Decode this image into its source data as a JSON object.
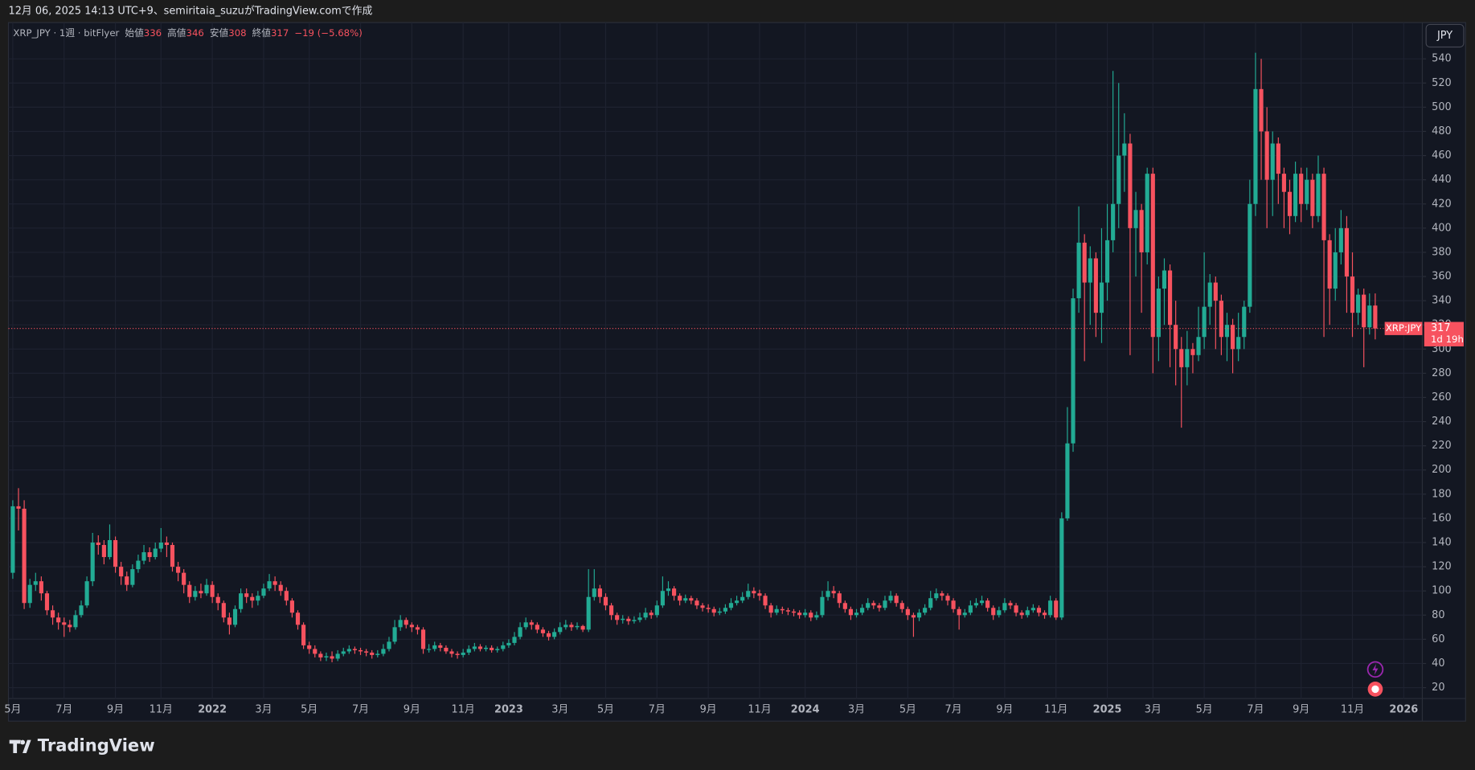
{
  "header": {
    "caption": "12月 06, 2025 14:13 UTC+9、semiritaia_suzuがTradingView.comで作成",
    "brand": "TradingView"
  },
  "chart_data": {
    "type": "candlestick",
    "symbol": "XRP_JPY · 1週 · bitFlyer",
    "ohlc_labels": [
      "始値",
      "高値",
      "安値",
      "終値"
    ],
    "change": "−19 (−5.68%)",
    "currency": "JPY",
    "price_tag": "XRP:JPY",
    "countdown": "1d 19h",
    "categories": [
      "5月",
      null,
      null,
      null,
      null,
      null,
      null,
      null,
      null,
      "7月",
      null,
      null,
      null,
      null,
      null,
      null,
      null,
      null,
      "9月",
      null,
      null,
      null,
      null,
      null,
      null,
      null,
      "11月",
      null,
      null,
      null,
      null,
      null,
      null,
      null,
      null,
      "2022",
      null,
      null,
      null,
      null,
      null,
      null,
      null,
      null,
      "3月",
      null,
      null,
      null,
      null,
      null,
      null,
      null,
      "5月",
      null,
      null,
      null,
      null,
      null,
      null,
      null,
      null,
      "7月",
      null,
      null,
      null,
      null,
      null,
      null,
      null,
      null,
      "9月",
      null,
      null,
      null,
      null,
      null,
      null,
      null,
      null,
      "11月",
      null,
      null,
      null,
      null,
      null,
      null,
      null,
      "2023",
      null,
      null,
      null,
      null,
      null,
      null,
      null,
      null,
      "3月",
      null,
      null,
      null,
      null,
      null,
      null,
      null,
      "5月",
      null,
      null,
      null,
      null,
      null,
      null,
      null,
      null,
      "7月",
      null,
      null,
      null,
      null,
      null,
      null,
      null,
      null,
      "9月",
      null,
      null,
      null,
      null,
      null,
      null,
      null,
      null,
      "11月",
      null,
      null,
      null,
      null,
      null,
      null,
      null,
      "2024",
      null,
      null,
      null,
      null,
      null,
      null,
      null,
      null,
      "3月",
      null,
      null,
      null,
      null,
      null,
      null,
      null,
      null,
      "5月",
      null,
      null,
      null,
      null,
      null,
      null,
      null,
      "7月",
      null,
      null,
      null,
      null,
      null,
      null,
      null,
      null,
      "9月",
      null,
      null,
      null,
      null,
      null,
      null,
      null,
      null,
      "11月",
      null,
      null,
      null,
      null,
      null,
      null,
      null,
      null,
      "2025",
      null,
      null,
      null,
      null,
      null,
      null,
      null,
      "3月",
      null,
      null,
      null,
      null,
      null,
      null,
      null,
      null,
      "5月",
      null,
      null,
      null,
      null,
      null,
      null,
      null,
      null,
      "7月",
      null,
      null,
      null,
      null,
      null,
      null,
      null,
      "9月",
      null,
      null,
      null,
      null,
      null,
      null,
      null,
      null,
      "11月",
      null,
      null,
      null,
      null,
      null,
      null,
      null,
      null,
      "2026",
      null,
      null
    ],
    "open": [
      115,
      170,
      168,
      90,
      105,
      108,
      98,
      84,
      78,
      74,
      72,
      70,
      80,
      88,
      108,
      140,
      138,
      128,
      142,
      120,
      112,
      105,
      118,
      125,
      132,
      128,
      135,
      140,
      138,
      120,
      115,
      105,
      95,
      100,
      98,
      105,
      95,
      90,
      78,
      72,
      85,
      98,
      95,
      92,
      96,
      102,
      108,
      105,
      100,
      92,
      82,
      72,
      55,
      52,
      48,
      45,
      46,
      44,
      48,
      50,
      52,
      51,
      50,
      49,
      47,
      48,
      52,
      58,
      70,
      76,
      72,
      70,
      68,
      52,
      52,
      55,
      53,
      50,
      48,
      47,
      49,
      52,
      54,
      52,
      53,
      51,
      52,
      55,
      57,
      62,
      70,
      74,
      72,
      68,
      65,
      62,
      66,
      70,
      72,
      70,
      71,
      68,
      95,
      102,
      95,
      88,
      80,
      76,
      77,
      75,
      76,
      78,
      82,
      80,
      88,
      100,
      102,
      96,
      92,
      94,
      92,
      88,
      86,
      85,
      82,
      83,
      86,
      90,
      92,
      95,
      100,
      98,
      96,
      88,
      82,
      85,
      84,
      83,
      82,
      80,
      82,
      78,
      80,
      95,
      100,
      98,
      90,
      85,
      80,
      82,
      86,
      90,
      88,
      86,
      92,
      96,
      90,
      85,
      80,
      78,
      82,
      86,
      94,
      98,
      96,
      92,
      85,
      80,
      82,
      88,
      90,
      92,
      86,
      80,
      84,
      90,
      88,
      82,
      80,
      84,
      86,
      82,
      80,
      92,
      78,
      160,
      222,
      342,
      388,
      355,
      375,
      330,
      355,
      390,
      420,
      460,
      470,
      400,
      415,
      380,
      445,
      310,
      350,
      365,
      320,
      300,
      285,
      300,
      295,
      310,
      335,
      355,
      340,
      310,
      320,
      300,
      310,
      335,
      420,
      515,
      480,
      440,
      470,
      445,
      430,
      410,
      445,
      420,
      440,
      410,
      445,
      390,
      350,
      380,
      400,
      360,
      330,
      345,
      318,
      336,
      null,
      null,
      null,
      null,
      null,
      null,
      null
    ],
    "high": [
      175,
      185,
      175,
      110,
      115,
      112,
      100,
      88,
      82,
      78,
      76,
      84,
      92,
      112,
      148,
      146,
      142,
      155,
      145,
      124,
      116,
      122,
      130,
      138,
      136,
      140,
      152,
      145,
      140,
      124,
      118,
      108,
      104,
      106,
      110,
      108,
      98,
      92,
      82,
      88,
      102,
      102,
      98,
      100,
      106,
      114,
      112,
      108,
      103,
      94,
      84,
      74,
      58,
      55,
      50,
      49,
      50,
      51,
      53,
      55,
      54,
      53,
      52,
      51,
      51,
      56,
      62,
      76,
      80,
      78,
      74,
      72,
      70,
      56,
      58,
      57,
      55,
      52,
      50,
      52,
      55,
      57,
      56,
      55,
      55,
      54,
      58,
      60,
      66,
      74,
      78,
      76,
      74,
      70,
      67,
      69,
      74,
      76,
      74,
      74,
      72,
      118,
      118,
      105,
      98,
      90,
      82,
      80,
      79,
      79,
      82,
      86,
      84,
      92,
      112,
      108,
      104,
      98,
      97,
      96,
      94,
      90,
      89,
      87,
      86,
      89,
      94,
      96,
      99,
      106,
      103,
      101,
      98,
      90,
      88,
      87,
      86,
      85,
      84,
      85,
      84,
      83,
      100,
      108,
      104,
      100,
      92,
      87,
      85,
      89,
      94,
      92,
      90,
      96,
      100,
      98,
      92,
      87,
      82,
      85,
      89,
      100,
      102,
      100,
      98,
      94,
      87,
      85,
      92,
      94,
      96,
      94,
      88,
      87,
      94,
      92,
      90,
      84,
      87,
      89,
      88,
      84,
      96,
      94,
      165,
      252,
      350,
      418,
      395,
      385,
      380,
      400,
      420,
      530,
      520,
      495,
      478,
      430,
      420,
      450,
      450,
      360,
      375,
      370,
      340,
      310,
      315,
      305,
      335,
      380,
      362,
      360,
      345,
      330,
      325,
      330,
      340,
      440,
      545,
      540,
      500,
      480,
      475,
      450,
      440,
      455,
      450,
      450,
      445,
      460,
      450,
      395,
      400,
      415,
      410,
      380,
      350,
      350,
      346,
      346,
      null,
      null,
      null,
      null,
      null,
      null,
      null
    ],
    "low": [
      110,
      150,
      85,
      86,
      100,
      92,
      80,
      72,
      68,
      62,
      66,
      68,
      78,
      86,
      104,
      130,
      122,
      126,
      115,
      105,
      100,
      103,
      115,
      122,
      124,
      126,
      132,
      128,
      116,
      108,
      98,
      90,
      92,
      94,
      96,
      90,
      84,
      74,
      64,
      70,
      82,
      90,
      86,
      88,
      94,
      100,
      100,
      96,
      88,
      78,
      68,
      52,
      48,
      45,
      42,
      42,
      41,
      42,
      46,
      48,
      48,
      47,
      46,
      44,
      45,
      46,
      50,
      56,
      67,
      69,
      66,
      64,
      48,
      49,
      50,
      50,
      48,
      45,
      44,
      45,
      47,
      50,
      50,
      50,
      49,
      49,
      50,
      53,
      55,
      60,
      68,
      68,
      65,
      62,
      59,
      60,
      64,
      68,
      67,
      68,
      66,
      66,
      92,
      90,
      84,
      76,
      72,
      73,
      72,
      73,
      74,
      76,
      77,
      78,
      86,
      96,
      92,
      88,
      90,
      89,
      85,
      83,
      82,
      79,
      80,
      81,
      84,
      88,
      90,
      93,
      94,
      92,
      85,
      78,
      80,
      81,
      80,
      79,
      77,
      78,
      75,
      76,
      78,
      92,
      94,
      86,
      82,
      76,
      78,
      80,
      84,
      85,
      83,
      84,
      90,
      87,
      82,
      76,
      62,
      75,
      80,
      84,
      92,
      92,
      88,
      82,
      68,
      78,
      80,
      86,
      88,
      83,
      76,
      78,
      82,
      85,
      79,
      77,
      78,
      82,
      79,
      77,
      78,
      76,
      76,
      158,
      215,
      330,
      290,
      320,
      310,
      305,
      340,
      380,
      400,
      430,
      295,
      360,
      330,
      370,
      280,
      290,
      320,
      285,
      270,
      235,
      270,
      280,
      290,
      300,
      320,
      300,
      295,
      290,
      280,
      290,
      300,
      330,
      410,
      440,
      400,
      410,
      420,
      400,
      395,
      405,
      405,
      415,
      400,
      405,
      310,
      320,
      340,
      370,
      330,
      310,
      320,
      285,
      312,
      308,
      null,
      null,
      null,
      null,
      null,
      null,
      null
    ],
    "close": [
      170,
      168,
      90,
      105,
      108,
      98,
      84,
      78,
      74,
      72,
      70,
      80,
      88,
      108,
      140,
      138,
      128,
      142,
      120,
      112,
      105,
      118,
      125,
      132,
      128,
      135,
      140,
      138,
      120,
      115,
      105,
      95,
      100,
      98,
      105,
      95,
      90,
      78,
      72,
      85,
      98,
      95,
      92,
      96,
      102,
      108,
      105,
      100,
      92,
      82,
      72,
      55,
      52,
      48,
      45,
      46,
      44,
      48,
      50,
      52,
      51,
      50,
      49,
      47,
      48,
      52,
      58,
      70,
      76,
      72,
      70,
      68,
      52,
      52,
      55,
      53,
      50,
      48,
      47,
      49,
      52,
      54,
      52,
      53,
      51,
      52,
      55,
      57,
      62,
      70,
      74,
      72,
      68,
      65,
      62,
      66,
      70,
      72,
      70,
      71,
      68,
      95,
      102,
      95,
      88,
      80,
      76,
      77,
      75,
      76,
      78,
      82,
      80,
      88,
      100,
      102,
      96,
      92,
      94,
      92,
      88,
      86,
      85,
      82,
      83,
      86,
      90,
      92,
      95,
      100,
      98,
      96,
      88,
      82,
      85,
      84,
      83,
      82,
      80,
      82,
      78,
      80,
      95,
      100,
      98,
      90,
      85,
      80,
      82,
      86,
      90,
      88,
      86,
      92,
      96,
      90,
      85,
      80,
      78,
      82,
      86,
      94,
      98,
      96,
      92,
      85,
      80,
      82,
      88,
      90,
      92,
      86,
      80,
      84,
      90,
      88,
      82,
      80,
      84,
      86,
      82,
      80,
      92,
      78,
      160,
      222,
      342,
      388,
      355,
      375,
      330,
      355,
      390,
      420,
      460,
      470,
      400,
      415,
      380,
      445,
      310,
      350,
      365,
      320,
      300,
      285,
      300,
      295,
      310,
      335,
      355,
      340,
      310,
      320,
      300,
      310,
      335,
      420,
      515,
      480,
      440,
      470,
      445,
      430,
      410,
      445,
      420,
      440,
      410,
      445,
      390,
      350,
      380,
      400,
      360,
      330,
      345,
      318,
      336,
      317,
      null,
      null,
      null,
      null,
      null,
      null,
      null
    ],
    "up_color": "#22ab94",
    "down_color": "#f7525f",
    "ylim": [
      11,
      570
    ],
    "yticks": [
      20,
      40,
      60,
      80,
      100,
      120,
      140,
      160,
      180,
      200,
      220,
      240,
      260,
      280,
      300,
      320,
      340,
      360,
      380,
      400,
      420,
      440,
      460,
      480,
      500,
      520,
      540
    ],
    "grid": true
  }
}
